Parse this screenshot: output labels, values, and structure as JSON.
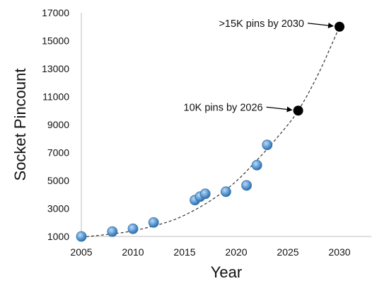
{
  "chart_data": {
    "type": "scatter",
    "title": "",
    "xlabel": "Year",
    "ylabel": "Socket Pincount",
    "xlim": [
      2005,
      2030
    ],
    "ylim": [
      1000,
      17000
    ],
    "x_ticks": [
      "2005",
      "2010",
      "2015",
      "2020",
      "2025",
      "2030"
    ],
    "y_ticks": [
      "1000",
      "3000",
      "5000",
      "7000",
      "9000",
      "11000",
      "13000",
      "15000",
      "17000"
    ],
    "grid": false,
    "series": [
      {
        "marker_color": "#5b9bd5",
        "points": [
          {
            "x": 2005,
            "y": 1000
          },
          {
            "x": 2008,
            "y": 1350
          },
          {
            "x": 2010,
            "y": 1550
          },
          {
            "x": 2012,
            "y": 2000
          },
          {
            "x": 2016,
            "y": 3600
          },
          {
            "x": 2016.5,
            "y": 3850
          },
          {
            "x": 2017,
            "y": 4050
          },
          {
            "x": 2019,
            "y": 4200
          },
          {
            "x": 2021,
            "y": 4650
          },
          {
            "x": 2022,
            "y": 6100
          },
          {
            "x": 2023,
            "y": 7550
          }
        ]
      },
      {
        "marker_color": "#000000",
        "points": [
          {
            "x": 2026,
            "y": 10000
          },
          {
            "x": 2030,
            "y": 16000
          }
        ]
      }
    ],
    "trendline": {
      "style": "dashed",
      "color": "#333333",
      "points": [
        {
          "x": 2005,
          "y": 950
        },
        {
          "x": 2008,
          "y": 1180
        },
        {
          "x": 2010,
          "y": 1400
        },
        {
          "x": 2012,
          "y": 1750
        },
        {
          "x": 2014,
          "y": 2200
        },
        {
          "x": 2016,
          "y": 2900
        },
        {
          "x": 2018,
          "y": 3800
        },
        {
          "x": 2020,
          "y": 4950
        },
        {
          "x": 2022,
          "y": 6450
        },
        {
          "x": 2024,
          "y": 8100
        },
        {
          "x": 2026,
          "y": 10000
        },
        {
          "x": 2028,
          "y": 12700
        },
        {
          "x": 2030,
          "y": 16000
        }
      ]
    },
    "annotations": [
      {
        "text": "10K pins by 2026",
        "x": 2026,
        "y": 10000
      },
      {
        "text": ">15K pins by 2030",
        "x": 2030,
        "y": 16000
      }
    ]
  }
}
